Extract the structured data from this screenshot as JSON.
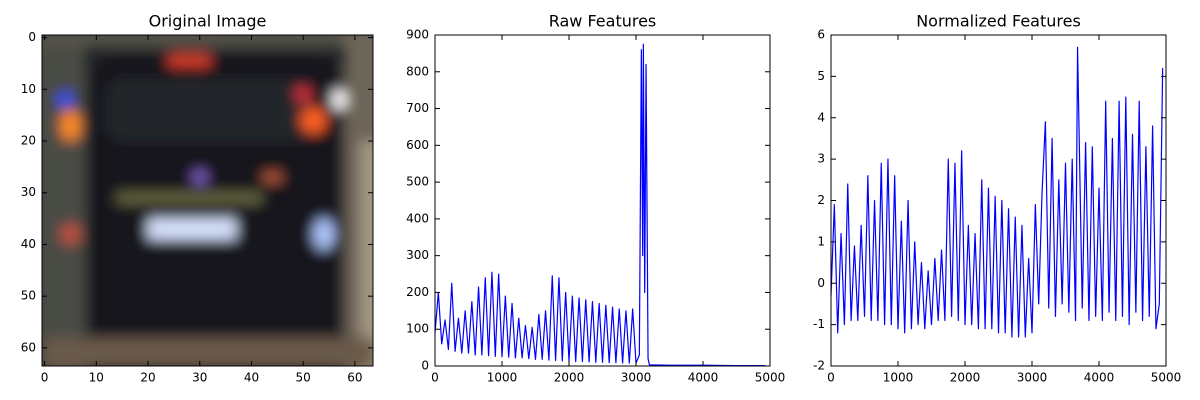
{
  "chart_data": [
    {
      "type": "image",
      "title": "Original Image",
      "xlim": [
        -0.5,
        63.5
      ],
      "ylim": [
        63.5,
        -0.5
      ],
      "xticks": [
        0,
        10,
        20,
        30,
        40,
        50,
        60
      ],
      "yticks": [
        0,
        10,
        20,
        30,
        40,
        50,
        60
      ]
    },
    {
      "type": "line",
      "title": "Raw Features",
      "xlim": [
        0,
        5000
      ],
      "ylim": [
        0,
        900
      ],
      "xticks": [
        0,
        1000,
        2000,
        3000,
        4000,
        5000
      ],
      "yticks": [
        0,
        100,
        200,
        300,
        400,
        500,
        600,
        700,
        800,
        900
      ],
      "color": "#0000ff",
      "x": [
        0,
        50,
        100,
        150,
        200,
        250,
        300,
        350,
        400,
        450,
        500,
        550,
        600,
        650,
        700,
        750,
        800,
        850,
        900,
        950,
        1000,
        1050,
        1100,
        1150,
        1200,
        1250,
        1300,
        1350,
        1400,
        1450,
        1500,
        1550,
        1600,
        1650,
        1700,
        1750,
        1800,
        1850,
        1900,
        1950,
        2000,
        2050,
        2100,
        2150,
        2200,
        2250,
        2300,
        2350,
        2400,
        2450,
        2500,
        2550,
        2600,
        2650,
        2700,
        2750,
        2800,
        2850,
        2900,
        2950,
        3000,
        3050,
        3080,
        3100,
        3110,
        3130,
        3150,
        3180,
        3200,
        3500,
        4000,
        4500,
        4930
      ],
      "values": [
        90,
        200,
        60,
        125,
        45,
        225,
        40,
        130,
        35,
        150,
        35,
        175,
        30,
        215,
        30,
        240,
        28,
        255,
        26,
        250,
        25,
        190,
        24,
        170,
        22,
        130,
        22,
        110,
        20,
        105,
        18,
        140,
        18,
        150,
        16,
        245,
        15,
        240,
        14,
        200,
        13,
        190,
        12,
        185,
        12,
        180,
        11,
        175,
        10,
        170,
        10,
        165,
        9,
        160,
        9,
        155,
        8,
        150,
        8,
        155,
        8,
        30,
        860,
        300,
        875,
        200,
        820,
        20,
        3,
        2,
        2,
        1,
        1
      ]
    },
    {
      "type": "line",
      "title": "Normalized Features",
      "xlim": [
        0,
        5000
      ],
      "ylim": [
        -2,
        6
      ],
      "xticks": [
        0,
        1000,
        2000,
        3000,
        4000,
        5000
      ],
      "yticks": [
        -2,
        -1,
        0,
        1,
        2,
        3,
        4,
        5,
        6
      ],
      "color": "#0000ff",
      "x": [
        0,
        50,
        100,
        150,
        200,
        250,
        300,
        350,
        400,
        450,
        500,
        550,
        600,
        650,
        700,
        750,
        800,
        850,
        900,
        950,
        1000,
        1050,
        1100,
        1150,
        1200,
        1250,
        1300,
        1350,
        1400,
        1450,
        1500,
        1550,
        1600,
        1650,
        1700,
        1750,
        1800,
        1850,
        1900,
        1950,
        2000,
        2050,
        2100,
        2150,
        2200,
        2250,
        2300,
        2350,
        2400,
        2450,
        2500,
        2550,
        2600,
        2650,
        2700,
        2750,
        2800,
        2850,
        2900,
        2950,
        3000,
        3050,
        3100,
        3150,
        3200,
        3250,
        3300,
        3350,
        3400,
        3450,
        3500,
        3550,
        3600,
        3650,
        3680,
        3750,
        3800,
        3850,
        3900,
        3950,
        4000,
        4050,
        4100,
        4150,
        4200,
        4250,
        4300,
        4350,
        4400,
        4450,
        4500,
        4550,
        4600,
        4650,
        4700,
        4750,
        4800,
        4850,
        4900,
        4950
      ],
      "values": [
        -0.3,
        1.9,
        -1.2,
        1.2,
        -1.0,
        2.4,
        -0.9,
        0.9,
        -0.9,
        1.4,
        -0.8,
        2.6,
        -0.9,
        2.0,
        -0.9,
        2.9,
        -1.0,
        3.0,
        -1.0,
        2.6,
        -1.1,
        1.5,
        -1.2,
        2.0,
        -1.1,
        1.0,
        -1.0,
        0.5,
        -1.1,
        0.3,
        -1.0,
        0.6,
        -0.9,
        0.8,
        -0.9,
        3.0,
        -0.8,
        2.9,
        -0.9,
        3.2,
        -1.0,
        1.4,
        -1.0,
        1.2,
        -1.1,
        2.5,
        -1.1,
        2.3,
        -1.1,
        2.1,
        -1.2,
        2.0,
        -1.2,
        1.8,
        -1.3,
        1.6,
        -1.3,
        1.4,
        -1.3,
        0.6,
        -1.2,
        1.9,
        -0.5,
        2.2,
        3.9,
        -0.6,
        3.5,
        -0.8,
        2.5,
        -0.5,
        2.9,
        -0.7,
        3.0,
        -0.9,
        5.7,
        -0.6,
        3.4,
        -0.9,
        3.3,
        -0.8,
        2.3,
        -0.9,
        4.4,
        -0.7,
        3.5,
        -0.9,
        4.4,
        -0.8,
        4.5,
        -1.0,
        3.6,
        -0.7,
        4.4,
        -0.9,
        3.3,
        -0.8,
        3.8,
        -1.1,
        -0.5,
        5.2
      ]
    }
  ]
}
